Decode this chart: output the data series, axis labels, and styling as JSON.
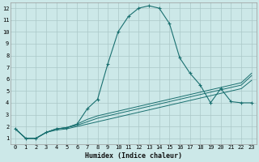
{
  "bg_color": "#cce8e8",
  "grid_color": "#aac8c8",
  "line_color": "#1a7070",
  "xlabel": "Humidex (Indice chaleur)",
  "xlim": [
    -0.5,
    23.5
  ],
  "ylim": [
    0.5,
    12.5
  ],
  "xticks": [
    0,
    1,
    2,
    3,
    4,
    5,
    6,
    7,
    8,
    9,
    10,
    11,
    12,
    13,
    14,
    15,
    16,
    17,
    18,
    19,
    20,
    21,
    22,
    23
  ],
  "yticks": [
    1,
    2,
    3,
    4,
    5,
    6,
    7,
    8,
    9,
    10,
    11,
    12
  ],
  "curve1_x": [
    0,
    1,
    2,
    3,
    4,
    5,
    6,
    7,
    8,
    9,
    10,
    11,
    12,
    13,
    14,
    15,
    16,
    17,
    18,
    19,
    20,
    21,
    22,
    23
  ],
  "curve1_y": [
    1.8,
    1.0,
    1.0,
    1.5,
    1.8,
    1.9,
    2.2,
    3.5,
    4.3,
    7.3,
    10.0,
    11.3,
    12.0,
    12.2,
    12.0,
    10.7,
    7.8,
    6.5,
    5.5,
    4.0,
    5.2,
    4.1,
    4.0,
    4.0
  ],
  "curve2_x": [
    0,
    1,
    2,
    3,
    4,
    5,
    6,
    7,
    8,
    9,
    10,
    11,
    12,
    13,
    14,
    15,
    16,
    17,
    18,
    19,
    20,
    21,
    22,
    23
  ],
  "curve2_y": [
    1.8,
    1.0,
    1.0,
    1.5,
    1.8,
    1.9,
    2.2,
    2.6,
    2.9,
    3.1,
    3.3,
    3.5,
    3.7,
    3.9,
    4.1,
    4.3,
    4.5,
    4.7,
    4.9,
    5.1,
    5.3,
    5.5,
    5.7,
    6.5
  ],
  "curve3_x": [
    0,
    1,
    2,
    3,
    4,
    5,
    6,
    7,
    8,
    9,
    10,
    11,
    12,
    13,
    14,
    15,
    16,
    17,
    18,
    19,
    20,
    21,
    22,
    23
  ],
  "curve3_y": [
    1.8,
    1.0,
    1.0,
    1.5,
    1.8,
    1.9,
    2.1,
    2.4,
    2.7,
    2.9,
    3.1,
    3.3,
    3.5,
    3.7,
    3.9,
    4.1,
    4.3,
    4.5,
    4.7,
    4.9,
    5.1,
    5.3,
    5.5,
    6.3
  ],
  "curve4_x": [
    0,
    1,
    2,
    3,
    4,
    5,
    6,
    7,
    8,
    9,
    10,
    11,
    12,
    13,
    14,
    15,
    16,
    17,
    18,
    19,
    20,
    21,
    22,
    23
  ],
  "curve4_y": [
    1.8,
    1.0,
    1.0,
    1.5,
    1.7,
    1.8,
    2.0,
    2.2,
    2.4,
    2.6,
    2.8,
    3.0,
    3.2,
    3.4,
    3.6,
    3.8,
    4.0,
    4.2,
    4.4,
    4.6,
    4.8,
    5.0,
    5.2,
    5.9
  ],
  "tick_fontsize": 5.0,
  "xlabel_fontsize": 6.0
}
